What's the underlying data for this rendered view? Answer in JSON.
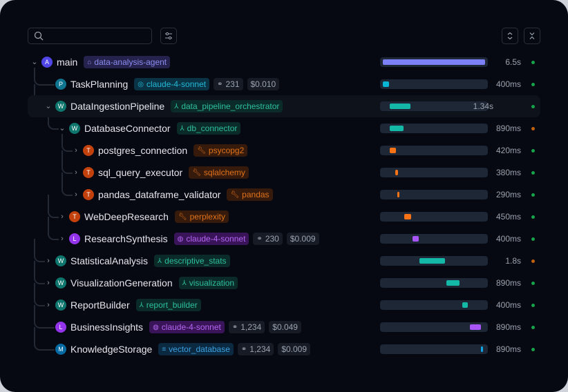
{
  "toolbar": {
    "search_placeholder": "",
    "filter_icon": "sliders-icon",
    "expand_icon": "chevrons-up-down-icon",
    "collapse_icon": "chevrons-collapse-icon"
  },
  "colors": {
    "avatar": {
      "A": "#4f46e5",
      "P": "#0e7490",
      "W": "#0f766e",
      "T": "#c2410c",
      "L": "#9333ea",
      "M": "#0369a1"
    },
    "bar": {
      "A": "#7c80f7",
      "P": "#06b6d4",
      "W": "#14b8a6",
      "T": "#f97316",
      "L": "#a855f7",
      "M": "#0ea5e9"
    },
    "badge": {
      "agent": [
        "#25234d",
        "#8b8cf0"
      ],
      "model": [
        "#0a3445",
        "#22b8d6"
      ],
      "workflow": [
        "#0a2b28",
        "#2dbf9f"
      ],
      "tool": [
        "#361a0b",
        "#e0731a"
      ],
      "llm": [
        "#3a1459",
        "#b366f0"
      ],
      "vector": [
        "#0b2941",
        "#3ba0e0"
      ]
    },
    "status": {
      "success": "#16a34a",
      "warning": "#c2610c"
    }
  },
  "rows": [
    {
      "level": 0,
      "parent": null,
      "chevron": "down",
      "avatar": "A",
      "name": "main",
      "badge": {
        "type": "agent",
        "icon": "robot-icon",
        "label": "data-analysis-agent"
      },
      "bar": [
        0,
        1
      ],
      "duration": "6.5s",
      "status": "success"
    },
    {
      "level": 1,
      "parent": 0,
      "chevron": null,
      "avatar": "P",
      "name": "TaskPlanning",
      "badge": {
        "type": "model",
        "icon": "target-icon",
        "label": "claude-4-sonnet"
      },
      "tokens": "231",
      "cost": "$0.010",
      "bar": [
        0,
        0.06
      ],
      "duration": "400ms",
      "status": "success"
    },
    {
      "level": 1,
      "parent": 0,
      "chevron": "down",
      "avatar": "W",
      "name": "DataIngestionPipeline",
      "badge": {
        "type": "workflow",
        "icon": "workflow-icon",
        "label": "data_pipeline_orchestrator"
      },
      "bar": [
        0.07,
        0.27
      ],
      "duration": "1.34s",
      "status": "success",
      "highlight": true
    },
    {
      "level": 2,
      "parent": 2,
      "chevron": "down",
      "avatar": "W",
      "name": "DatabaseConnector",
      "badge": {
        "type": "workflow",
        "icon": "workflow-icon",
        "label": "db_connector"
      },
      "bar": [
        0.07,
        0.2
      ],
      "duration": "890ms",
      "status": "warning"
    },
    {
      "level": 3,
      "parent": 3,
      "chevron": "right",
      "avatar": "T",
      "name": "postgres_connection",
      "badge": {
        "type": "tool",
        "icon": "wrench-icon",
        "label": "psycopg2"
      },
      "bar": [
        0.07,
        0.13
      ],
      "duration": "420ms",
      "status": "success"
    },
    {
      "level": 3,
      "parent": 3,
      "chevron": "right",
      "avatar": "T",
      "name": "sql_query_executor",
      "badge": {
        "type": "tool",
        "icon": "wrench-icon",
        "label": "sqlalchemy"
      },
      "bar": [
        0.12,
        0.15
      ],
      "duration": "380ms",
      "status": "success"
    },
    {
      "level": 3,
      "parent": 3,
      "chevron": "right",
      "avatar": "T",
      "name": "pandas_dataframe_validator",
      "badge": {
        "type": "tool",
        "icon": "wrench-icon",
        "label": "pandas"
      },
      "bar": [
        0.145,
        0.16
      ],
      "duration": "290ms",
      "status": "success"
    },
    {
      "level": 2,
      "parent": 2,
      "chevron": "right",
      "avatar": "T",
      "name": "WebDeepResearch",
      "badge": {
        "type": "tool",
        "icon": "wrench-icon",
        "label": "perplexity"
      },
      "bar": [
        0.21,
        0.28
      ],
      "duration": "450ms",
      "status": "success"
    },
    {
      "level": 2,
      "parent": 2,
      "chevron": "right",
      "avatar": "L",
      "name": "ResearchSynthesis",
      "badge": {
        "type": "llm",
        "icon": "brain-icon",
        "label": "claude-4-sonnet"
      },
      "tokens": "230",
      "cost": "$0.009",
      "bar": [
        0.29,
        0.35
      ],
      "duration": "400ms",
      "status": "success"
    },
    {
      "level": 1,
      "parent": 0,
      "chevron": "right",
      "avatar": "W",
      "name": "StatisticalAnalysis",
      "badge": {
        "type": "workflow",
        "icon": "workflow-icon",
        "label": "descriptive_stats"
      },
      "bar": [
        0.36,
        0.61
      ],
      "duration": "1.8s",
      "status": "warning"
    },
    {
      "level": 1,
      "parent": 0,
      "chevron": "right",
      "avatar": "W",
      "name": "VisualizationGeneration",
      "badge": {
        "type": "workflow",
        "icon": "workflow-icon",
        "label": "visualization"
      },
      "bar": [
        0.62,
        0.75
      ],
      "duration": "890ms",
      "status": "success"
    },
    {
      "level": 1,
      "parent": 0,
      "chevron": "right",
      "avatar": "W",
      "name": "ReportBuilder",
      "badge": {
        "type": "workflow",
        "icon": "workflow-icon",
        "label": "report_builder"
      },
      "bar": [
        0.78,
        0.83
      ],
      "duration": "400ms",
      "status": "success"
    },
    {
      "level": 1,
      "parent": 0,
      "chevron": null,
      "avatar": "L",
      "name": "BusinessInsights",
      "badge": {
        "type": "llm",
        "icon": "brain-icon",
        "label": "claude-4-sonnet"
      },
      "tokens": "1,234",
      "cost": "$0.049",
      "bar": [
        0.85,
        0.96
      ],
      "duration": "890ms",
      "status": "success"
    },
    {
      "level": 1,
      "parent": 0,
      "chevron": null,
      "avatar": "M",
      "name": "KnowledgeStorage",
      "badge": {
        "type": "vector",
        "icon": "database-icon",
        "label": "vector_database"
      },
      "tokens": "1,234",
      "cost": "$0.009",
      "bar": [
        0.96,
        0.98
      ],
      "duration": "890ms",
      "status": "success"
    }
  ]
}
